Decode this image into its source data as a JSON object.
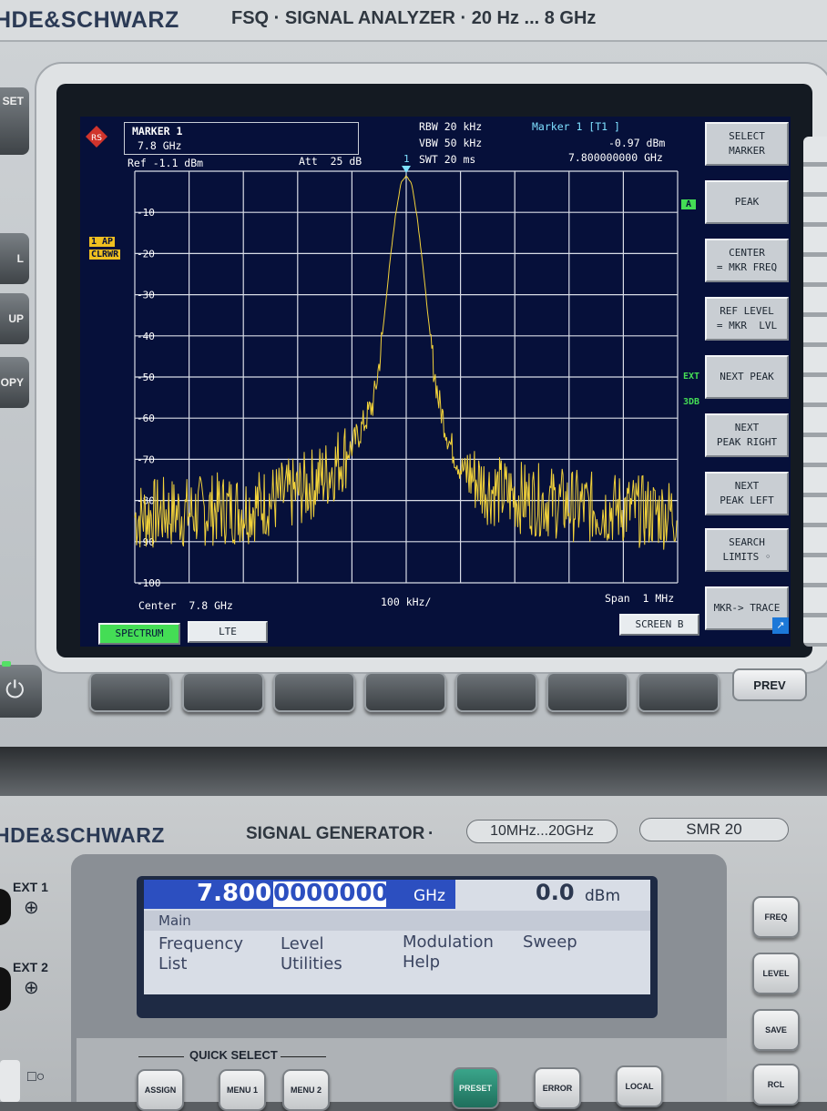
{
  "analyzer": {
    "brand": "HDE&SCHWARZ",
    "model_line": "FSQ · SIGNAL ANALYZER · 20 Hz ... 8 GHz",
    "left_buttons": [
      "SET",
      "L",
      "UP",
      "OPY"
    ],
    "marker_box": {
      "line1": "MARKER 1",
      "line2": "7.8 GHz"
    },
    "ref_label": "Ref -1.1 dBm",
    "att_label": "Att  25 dB",
    "rbw": "RBW 20 kHz",
    "vbw": "VBW 50 kHz",
    "swt": "SWT 20 ms",
    "marker_readout": {
      "title": "Marker 1 [T1 ]",
      "level": "-0.97 dBm",
      "freq": "7.800000000 GHz"
    },
    "trace_ind_1": "1 AP",
    "trace_ind_2": "CLRWR",
    "marker_flag": "1",
    "side_ind_a": "A",
    "side_ind_ext": "EXT",
    "side_ind_3db": "3DB",
    "center_label": "Center  7.8 GHz",
    "div_label": "100 kHz/",
    "span_label": "Span  1 MHz",
    "tabs": {
      "spectrum": "SPECTRUM",
      "lte": "LTE",
      "screen": "SCREEN B"
    },
    "softkeys": [
      "SELECT\nMARKER",
      "PEAK",
      "CENTER\n= MKR FREQ",
      "REF LEVEL\n= MKR  LVL",
      "NEXT PEAK",
      "NEXT\nPEAK RIGHT",
      "NEXT\nPEAK LEFT",
      "SEARCH\nLIMITS ◦",
      "MKR-> TRACE"
    ],
    "prev_button": "PREV",
    "colors": {
      "screen_bg": "#06103a",
      "trace": "#f2d23a",
      "grid": "#d8dce6",
      "accent_green": "#44dd55",
      "ind_yellow": "#f0c020"
    }
  },
  "chart_data": {
    "type": "line",
    "title": "",
    "xlabel": "",
    "ylabel": "",
    "center_ghz": 7.8,
    "span_mhz": 1,
    "x_unit": "kHz offset from center",
    "xlim": [
      -500,
      500
    ],
    "ylim": [
      -100,
      0
    ],
    "y_unit": "dBm",
    "y_ticks": [
      -10,
      -20,
      -30,
      -40,
      -50,
      -60,
      -70,
      -80,
      -90,
      -100
    ],
    "grid": true,
    "series": [
      {
        "x": [
          -500,
          -450,
          -400,
          -350,
          -300,
          -250,
          -200,
          -150,
          -100,
          -80,
          -60,
          -50,
          -40,
          -30,
          -20,
          -10,
          0,
          10,
          20,
          30,
          40,
          50,
          60,
          80,
          100,
          150,
          200,
          250,
          300,
          350,
          400,
          450,
          500
        ],
        "values": [
          -84,
          -83,
          -83,
          -82,
          -82,
          -80,
          -78,
          -74,
          -67,
          -62,
          -56,
          -47,
          -35,
          -22,
          -11,
          -3,
          -1,
          -3,
          -11,
          -22,
          -35,
          -47,
          -56,
          -66,
          -72,
          -77,
          -79,
          -80,
          -81,
          -82,
          -82,
          -83,
          -83
        ]
      }
    ]
  },
  "generator": {
    "brand": "HDE&SCHWARZ",
    "title": "SIGNAL GENERATOR",
    "range_pill": "10MHz...20GHz",
    "model_pill": "SMR 20",
    "ext1": "EXT 1",
    "ext2": "EXT 2",
    "freq_digits_a": "7.800",
    "freq_digits_b": "0000000",
    "freq_unit": "GHz",
    "level_value": "0.0",
    "level_unit": "dBm",
    "menu_title": "Main",
    "menu_items": [
      "Frequency",
      "Level",
      "Modulation",
      "Sweep",
      "List",
      "Utilities",
      "Help"
    ],
    "quick_select": "QUICK SELECT",
    "keys_bottom": [
      "ASSIGN",
      "MENU 1",
      "MENU 2",
      "PRESET",
      "ERROR",
      "LOCAL"
    ],
    "keys_right": [
      "FREQ",
      "LEVEL",
      "SAVE",
      "RCL"
    ],
    "display_bg": "#d8dde6",
    "text_color": "#3a4460"
  }
}
